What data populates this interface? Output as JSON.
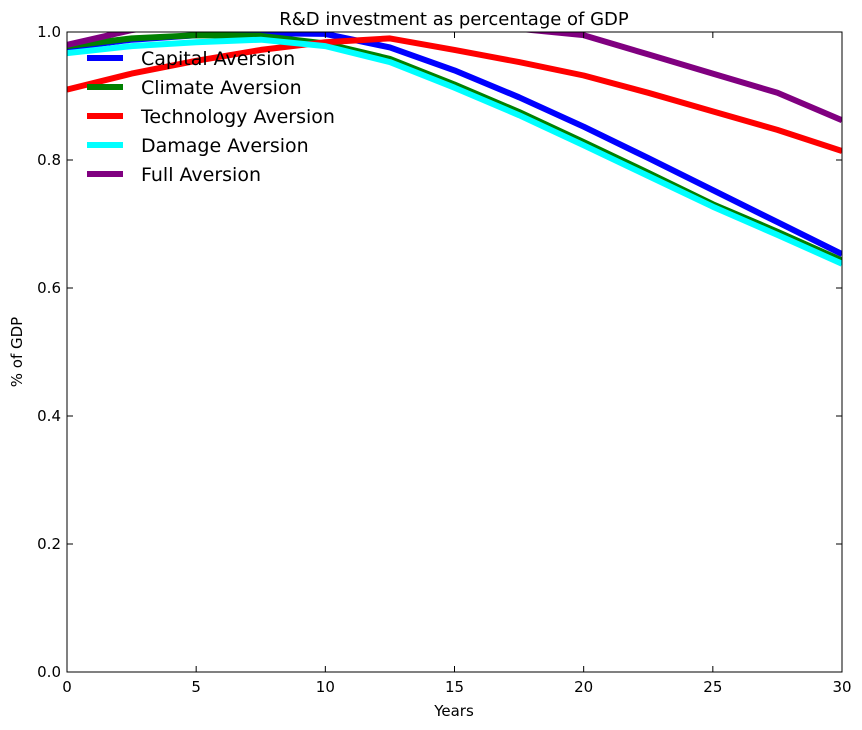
{
  "chart_data": {
    "type": "line",
    "title": "R&D investment as percentage of  GDP",
    "xlabel": "Years",
    "ylabel": "% of GDP",
    "xlim": [
      0,
      30
    ],
    "ylim": [
      0.0,
      1.0
    ],
    "xticks": [
      "0",
      "5",
      "10",
      "15",
      "20",
      "25",
      "30"
    ],
    "yticks": [
      "0.0",
      "0.2",
      "0.4",
      "0.6",
      "0.8",
      "1.0"
    ],
    "grid": false,
    "legend_position": "top-left",
    "x": [
      0,
      2.5,
      5,
      7.5,
      10,
      12.5,
      15,
      17.5,
      20,
      22.5,
      25,
      27.5,
      30
    ],
    "series": [
      {
        "name": "Capital Aversion",
        "color": "#0000ff",
        "values": [
          0.975,
          0.988,
          0.995,
          0.998,
          0.997,
          0.976,
          0.94,
          0.898,
          0.852,
          0.803,
          0.753,
          0.703,
          0.653
        ]
      },
      {
        "name": "Climate Aversion",
        "color": "#008000",
        "values": [
          0.978,
          0.99,
          0.995,
          0.994,
          0.982,
          0.958,
          0.918,
          0.875,
          0.828,
          0.78,
          0.731,
          0.688,
          0.643
        ]
      },
      {
        "name": "Technology Aversion",
        "color": "#ff0000",
        "values": [
          0.91,
          0.935,
          0.955,
          0.972,
          0.984,
          0.99,
          0.972,
          0.953,
          0.932,
          0.905,
          0.876,
          0.847,
          0.814
        ]
      },
      {
        "name": "Damage Aversion",
        "color": "#00ffff",
        "values": [
          0.967,
          0.978,
          0.984,
          0.988,
          0.978,
          0.953,
          0.913,
          0.87,
          0.823,
          0.775,
          0.727,
          0.683,
          0.638
        ]
      },
      {
        "name": "Full Aversion",
        "color": "#800080",
        "values": [
          0.98,
          1.003,
          1.018,
          1.027,
          1.03,
          1.028,
          1.018,
          1.005,
          0.995,
          0.965,
          0.935,
          0.905,
          0.862
        ]
      }
    ]
  }
}
